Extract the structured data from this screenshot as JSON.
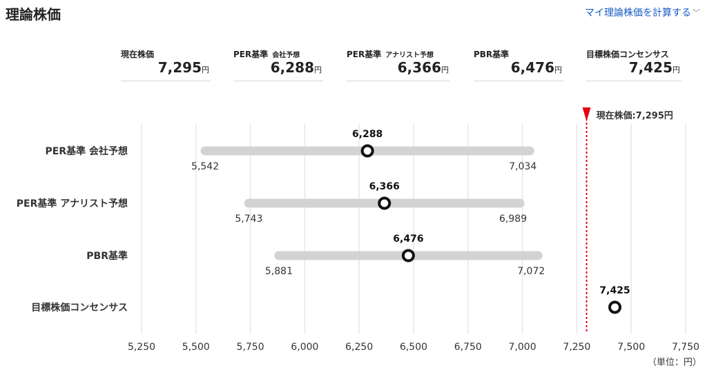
{
  "page": {
    "title": "理論株価",
    "calc_link": "マイ理論株価を計算する",
    "unit_note": "（単位：円）"
  },
  "summary": [
    {
      "label": "現在株価",
      "sub": "",
      "value": "7,295",
      "unit": "円"
    },
    {
      "label": "PER基準",
      "sub": "会社予想",
      "value": "6,288",
      "unit": "円"
    },
    {
      "label": "PER基準",
      "sub": "アナリスト予想",
      "value": "6,366",
      "unit": "円"
    },
    {
      "label": "PBR基準",
      "sub": "",
      "value": "6,476",
      "unit": "円"
    },
    {
      "label": "目標株価コンセンサス",
      "sub": "",
      "value": "7,425",
      "unit": "円"
    }
  ],
  "chart_data": {
    "type": "range",
    "xlim": [
      5250,
      7750
    ],
    "xticks": [
      5250,
      5500,
      5750,
      6000,
      6250,
      6500,
      6750,
      7000,
      7250,
      7500,
      7750
    ],
    "xtick_labels": [
      "5,250",
      "5,500",
      "5,750",
      "6,000",
      "6,250",
      "6,500",
      "6,750",
      "7,000",
      "7,250",
      "7,500",
      "7,750"
    ],
    "grid": true,
    "categories": [
      "PER基準 会社予想",
      "PER基準 アナリスト予想",
      "PBR基準",
      "目標株価コンセンサス"
    ],
    "series": [
      {
        "category": "PER基準 会社予想",
        "low": 5542,
        "high": 7034,
        "value": 6288,
        "low_label": "5,542",
        "high_label": "7,034",
        "value_label": "6,288"
      },
      {
        "category": "PER基準 アナリスト予想",
        "low": 5743,
        "high": 6989,
        "value": 6366,
        "low_label": "5,743",
        "high_label": "6,989",
        "value_label": "6,366"
      },
      {
        "category": "PBR基準",
        "low": 5881,
        "high": 7072,
        "value": 6476,
        "low_label": "5,881",
        "high_label": "7,072",
        "value_label": "6,476"
      },
      {
        "category": "目標株価コンセンサス",
        "low": null,
        "high": null,
        "value": 7425,
        "low_label": "",
        "high_label": "",
        "value_label": "7,425"
      }
    ],
    "current_price": {
      "value": 7295,
      "label": "現在株価:7,295円"
    },
    "colors": {
      "range_bar": "#d3d3d3",
      "marker": "#111111",
      "current_line": "#e60012",
      "grid": "#e6e6e6"
    }
  }
}
